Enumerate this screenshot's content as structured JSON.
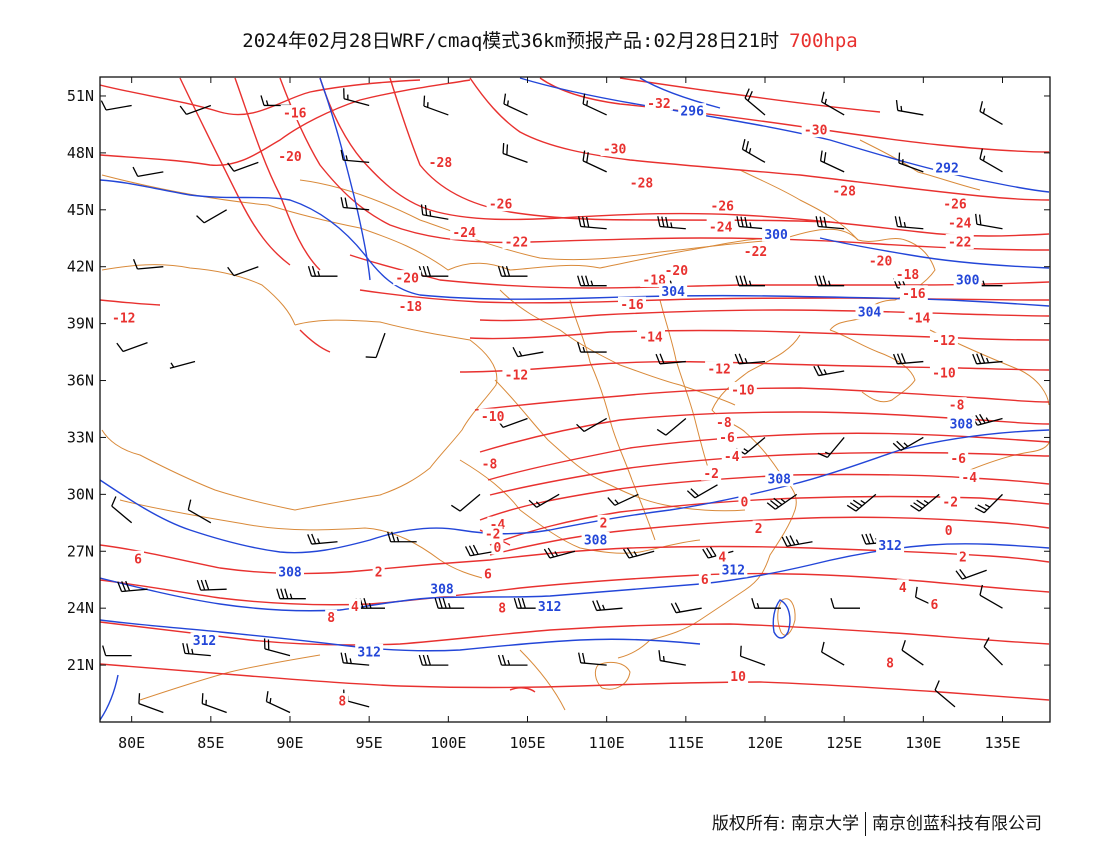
{
  "title": {
    "main": "2024年02月28日WRF/cmaq模式36km预报产品:02月28日21时",
    "level": "700hpa"
  },
  "credit": {
    "left": "版权所有: 南京大学",
    "right": "南京创蓝科技有限公司"
  },
  "map": {
    "lon_range": [
      78,
      138
    ],
    "lat_range": [
      18,
      52
    ],
    "lon_ticks": [
      "80E",
      "85E",
      "90E",
      "95E",
      "100E",
      "105E",
      "110E",
      "115E",
      "120E",
      "125E",
      "130E",
      "135E"
    ],
    "lat_ticks": [
      "51N",
      "48N",
      "45N",
      "42N",
      "39N",
      "36N",
      "33N",
      "30N",
      "27N",
      "24N",
      "21N"
    ],
    "colors": {
      "temperature": "#e8312f",
      "height": "#2346d8",
      "boundary": "#d98a3a",
      "barb": "#000000"
    },
    "temperature_labels": [
      {
        "text": "-16",
        "lon": 90.3,
        "lat": 50.1
      },
      {
        "text": "-20",
        "lon": 90.0,
        "lat": 47.8
      },
      {
        "text": "-32",
        "lon": 113.3,
        "lat": 50.6
      },
      {
        "text": "-30",
        "lon": 110.5,
        "lat": 48.2
      },
      {
        "text": "-30",
        "lon": 123.2,
        "lat": 49.2
      },
      {
        "text": "-28",
        "lon": 99.5,
        "lat": 47.5
      },
      {
        "text": "-28",
        "lon": 112.2,
        "lat": 46.4
      },
      {
        "text": "-28",
        "lon": 125.0,
        "lat": 46.0
      },
      {
        "text": "-26",
        "lon": 103.3,
        "lat": 45.3
      },
      {
        "text": "-26",
        "lon": 117.3,
        "lat": 45.2
      },
      {
        "text": "-26",
        "lon": 132.0,
        "lat": 45.3
      },
      {
        "text": "-24",
        "lon": 101.0,
        "lat": 43.8
      },
      {
        "text": "-24",
        "lon": 117.2,
        "lat": 44.1
      },
      {
        "text": "-24",
        "lon": 132.3,
        "lat": 44.3
      },
      {
        "text": "-22",
        "lon": 104.3,
        "lat": 43.3
      },
      {
        "text": "-22",
        "lon": 119.4,
        "lat": 42.8
      },
      {
        "text": "-22",
        "lon": 132.3,
        "lat": 43.3
      },
      {
        "text": "-20",
        "lon": 97.4,
        "lat": 41.4
      },
      {
        "text": "-20",
        "lon": 114.4,
        "lat": 41.8
      },
      {
        "text": "-20",
        "lon": 127.3,
        "lat": 42.3
      },
      {
        "text": "-18",
        "lon": 97.6,
        "lat": 39.9
      },
      {
        "text": "-18",
        "lon": 113.0,
        "lat": 41.3
      },
      {
        "text": "-18",
        "lon": 129.0,
        "lat": 41.6
      },
      {
        "text": "-16",
        "lon": 111.6,
        "lat": 40.0
      },
      {
        "text": "-16",
        "lon": 129.4,
        "lat": 40.6
      },
      {
        "text": "-14",
        "lon": 112.8,
        "lat": 38.3
      },
      {
        "text": "-14",
        "lon": 129.7,
        "lat": 39.3
      },
      {
        "text": "-12",
        "lon": 79.5,
        "lat": 39.3
      },
      {
        "text": "-12",
        "lon": 104.3,
        "lat": 36.3
      },
      {
        "text": "-12",
        "lon": 117.1,
        "lat": 36.6
      },
      {
        "text": "-12",
        "lon": 131.3,
        "lat": 38.1
      },
      {
        "text": "-10",
        "lon": 102.8,
        "lat": 34.1
      },
      {
        "text": "-10",
        "lon": 118.6,
        "lat": 35.5
      },
      {
        "text": "-10",
        "lon": 131.3,
        "lat": 36.4
      },
      {
        "text": "-8",
        "lon": 102.6,
        "lat": 31.6
      },
      {
        "text": "-8",
        "lon": 117.4,
        "lat": 33.8
      },
      {
        "text": "-8",
        "lon": 132.1,
        "lat": 34.7
      },
      {
        "text": "-6",
        "lon": 117.6,
        "lat": 33.0
      },
      {
        "text": "-6",
        "lon": 132.2,
        "lat": 31.9
      },
      {
        "text": "-4",
        "lon": 117.9,
        "lat": 32.0
      },
      {
        "text": "-4",
        "lon": 132.9,
        "lat": 30.9
      },
      {
        "text": "-4",
        "lon": 103.1,
        "lat": 28.4
      },
      {
        "text": "-2",
        "lon": 116.6,
        "lat": 31.1
      },
      {
        "text": "-2",
        "lon": 131.7,
        "lat": 29.6
      },
      {
        "text": "-2",
        "lon": 102.8,
        "lat": 27.9
      },
      {
        "text": "0",
        "lon": 118.7,
        "lat": 29.6
      },
      {
        "text": "0",
        "lon": 131.6,
        "lat": 28.1
      },
      {
        "text": "0",
        "lon": 103.1,
        "lat": 27.2
      },
      {
        "text": "2",
        "lon": 109.8,
        "lat": 28.5
      },
      {
        "text": "2",
        "lon": 119.6,
        "lat": 28.2
      },
      {
        "text": "2",
        "lon": 95.6,
        "lat": 25.9
      },
      {
        "text": "2",
        "lon": 132.5,
        "lat": 26.7
      },
      {
        "text": "4",
        "lon": 94.1,
        "lat": 24.1
      },
      {
        "text": "4",
        "lon": 128.7,
        "lat": 25.1
      },
      {
        "text": "4",
        "lon": 117.3,
        "lat": 26.7
      },
      {
        "text": "6",
        "lon": 80.4,
        "lat": 26.6
      },
      {
        "text": "6",
        "lon": 102.5,
        "lat": 25.8
      },
      {
        "text": "6",
        "lon": 116.2,
        "lat": 25.5
      },
      {
        "text": "6",
        "lon": 130.7,
        "lat": 24.2
      },
      {
        "text": "8",
        "lon": 103.4,
        "lat": 24.0
      },
      {
        "text": "8",
        "lon": 127.9,
        "lat": 21.1
      },
      {
        "text": "8",
        "lon": 92.6,
        "lat": 23.5
      },
      {
        "text": "8",
        "lon": 93.3,
        "lat": 19.1
      },
      {
        "text": "10",
        "lon": 118.3,
        "lat": 20.4
      }
    ],
    "height_labels": [
      {
        "text": "296",
        "lon": 115.4,
        "lat": 50.2
      },
      {
        "text": "292",
        "lon": 131.5,
        "lat": 47.2
      },
      {
        "text": "300",
        "lon": 120.7,
        "lat": 43.7
      },
      {
        "text": "300",
        "lon": 132.8,
        "lat": 41.3
      },
      {
        "text": "304",
        "lon": 114.2,
        "lat": 40.7
      },
      {
        "text": "304",
        "lon": 126.6,
        "lat": 39.6
      },
      {
        "text": "308",
        "lon": 132.4,
        "lat": 33.7
      },
      {
        "text": "308",
        "lon": 120.9,
        "lat": 30.8
      },
      {
        "text": "308",
        "lon": 109.3,
        "lat": 27.6
      },
      {
        "text": "308",
        "lon": 90.0,
        "lat": 25.9
      },
      {
        "text": "308",
        "lon": 99.6,
        "lat": 25.0
      },
      {
        "text": "312",
        "lon": 127.9,
        "lat": 27.3
      },
      {
        "text": "312",
        "lon": 118.0,
        "lat": 26.0
      },
      {
        "text": "312",
        "lon": 106.4,
        "lat": 24.1
      },
      {
        "text": "312",
        "lon": 84.6,
        "lat": 22.3
      },
      {
        "text": "312",
        "lon": 95.0,
        "lat": 21.7
      }
    ],
    "barbs": [
      {
        "lon": 80.0,
        "lat": 50.5,
        "dir": 260,
        "kt": 10
      },
      {
        "lon": 85.0,
        "lat": 50.5,
        "dir": 250,
        "kt": 12
      },
      {
        "lon": 90.0,
        "lat": 50.5,
        "dir": 270,
        "kt": 14
      },
      {
        "lon": 95.0,
        "lat": 50.5,
        "dir": 285,
        "kt": 16
      },
      {
        "lon": 100.0,
        "lat": 50.0,
        "dir": 290,
        "kt": 18
      },
      {
        "lon": 105.0,
        "lat": 50.0,
        "dir": 295,
        "kt": 18
      },
      {
        "lon": 110.0,
        "lat": 50.0,
        "dir": 295,
        "kt": 16
      },
      {
        "lon": 120.0,
        "lat": 50.0,
        "dir": 310,
        "kt": 20
      },
      {
        "lon": 125.0,
        "lat": 50.0,
        "dir": 300,
        "kt": 18
      },
      {
        "lon": 130.0,
        "lat": 50.0,
        "dir": 280,
        "kt": 14
      },
      {
        "lon": 135.0,
        "lat": 49.5,
        "dir": 300,
        "kt": 16
      },
      {
        "lon": 82.0,
        "lat": 47.0,
        "dir": 260,
        "kt": 10
      },
      {
        "lon": 88.0,
        "lat": 47.5,
        "dir": 250,
        "kt": 12
      },
      {
        "lon": 95.0,
        "lat": 47.5,
        "dir": 275,
        "kt": 16
      },
      {
        "lon": 105.0,
        "lat": 47.5,
        "dir": 290,
        "kt": 20
      },
      {
        "lon": 110.0,
        "lat": 47.0,
        "dir": 295,
        "kt": 22
      },
      {
        "lon": 120.0,
        "lat": 47.5,
        "dir": 300,
        "kt": 24
      },
      {
        "lon": 125.0,
        "lat": 47.0,
        "dir": 295,
        "kt": 22
      },
      {
        "lon": 130.0,
        "lat": 47.0,
        "dir": 290,
        "kt": 18
      },
      {
        "lon": 135.0,
        "lat": 47.0,
        "dir": 300,
        "kt": 16
      },
      {
        "lon": 86.0,
        "lat": 45.0,
        "dir": 240,
        "kt": 12
      },
      {
        "lon": 95.0,
        "lat": 45.0,
        "dir": 275,
        "kt": 20
      },
      {
        "lon": 100.0,
        "lat": 44.5,
        "dir": 280,
        "kt": 24
      },
      {
        "lon": 110.0,
        "lat": 44.0,
        "dir": 275,
        "kt": 30
      },
      {
        "lon": 115.0,
        "lat": 44.0,
        "dir": 275,
        "kt": 34
      },
      {
        "lon": 120.0,
        "lat": 44.0,
        "dir": 275,
        "kt": 36
      },
      {
        "lon": 125.0,
        "lat": 44.0,
        "dir": 275,
        "kt": 32
      },
      {
        "lon": 130.0,
        "lat": 44.0,
        "dir": 275,
        "kt": 26
      },
      {
        "lon": 135.0,
        "lat": 44.0,
        "dir": 280,
        "kt": 20
      },
      {
        "lon": 82.0,
        "lat": 42.0,
        "dir": 265,
        "kt": 10
      },
      {
        "lon": 88.0,
        "lat": 42.0,
        "dir": 250,
        "kt": 12
      },
      {
        "lon": 93.0,
        "lat": 41.5,
        "dir": 270,
        "kt": 28
      },
      {
        "lon": 100.0,
        "lat": 41.5,
        "dir": 270,
        "kt": 30
      },
      {
        "lon": 105.0,
        "lat": 41.5,
        "dir": 270,
        "kt": 32
      },
      {
        "lon": 110.0,
        "lat": 41.0,
        "dir": 270,
        "kt": 34
      },
      {
        "lon": 115.0,
        "lat": 41.0,
        "dir": 270,
        "kt": 38
      },
      {
        "lon": 120.0,
        "lat": 41.0,
        "dir": 270,
        "kt": 36
      },
      {
        "lon": 125.0,
        "lat": 41.0,
        "dir": 270,
        "kt": 34
      },
      {
        "lon": 130.0,
        "lat": 41.0,
        "dir": 265,
        "kt": 30
      },
      {
        "lon": 135.0,
        "lat": 41.0,
        "dir": 270,
        "kt": 26
      },
      {
        "lon": 81.0,
        "lat": 38.0,
        "dir": 250,
        "kt": 10
      },
      {
        "lon": 84.0,
        "lat": 37.0,
        "dir": 255,
        "kt": 8
      },
      {
        "lon": 96.0,
        "lat": 38.5,
        "dir": 200,
        "kt": 10
      },
      {
        "lon": 106.0,
        "lat": 37.5,
        "dir": 260,
        "kt": 14
      },
      {
        "lon": 110.0,
        "lat": 37.5,
        "dir": 270,
        "kt": 16
      },
      {
        "lon": 115.0,
        "lat": 37.0,
        "dir": 265,
        "kt": 20
      },
      {
        "lon": 120.0,
        "lat": 37.0,
        "dir": 265,
        "kt": 24
      },
      {
        "lon": 125.0,
        "lat": 36.5,
        "dir": 260,
        "kt": 28
      },
      {
        "lon": 130.0,
        "lat": 37.0,
        "dir": 265,
        "kt": 32
      },
      {
        "lon": 135.0,
        "lat": 37.0,
        "dir": 265,
        "kt": 34
      },
      {
        "lon": 105.0,
        "lat": 34.0,
        "dir": 250,
        "kt": 12
      },
      {
        "lon": 110.0,
        "lat": 34.0,
        "dir": 240,
        "kt": 12
      },
      {
        "lon": 115.0,
        "lat": 34.0,
        "dir": 230,
        "kt": 12
      },
      {
        "lon": 120.0,
        "lat": 33.0,
        "dir": 230,
        "kt": 16
      },
      {
        "lon": 125.0,
        "lat": 33.0,
        "dir": 220,
        "kt": 16
      },
      {
        "lon": 130.0,
        "lat": 33.0,
        "dir": 240,
        "kt": 24
      },
      {
        "lon": 135.0,
        "lat": 34.0,
        "dir": 255,
        "kt": 34
      },
      {
        "lon": 102.0,
        "lat": 30.0,
        "dir": 230,
        "kt": 12
      },
      {
        "lon": 107.0,
        "lat": 30.0,
        "dir": 240,
        "kt": 14
      },
      {
        "lon": 112.0,
        "lat": 30.0,
        "dir": 245,
        "kt": 16
      },
      {
        "lon": 117.0,
        "lat": 30.5,
        "dir": 240,
        "kt": 20
      },
      {
        "lon": 122.0,
        "lat": 30.0,
        "dir": 235,
        "kt": 34
      },
      {
        "lon": 127.0,
        "lat": 30.0,
        "dir": 230,
        "kt": 34
      },
      {
        "lon": 131.0,
        "lat": 30.0,
        "dir": 230,
        "kt": 36
      },
      {
        "lon": 135.0,
        "lat": 30.0,
        "dir": 225,
        "kt": 28
      },
      {
        "lon": 80.0,
        "lat": 28.5,
        "dir": 310,
        "kt": 10
      },
      {
        "lon": 85.0,
        "lat": 28.5,
        "dir": 300,
        "kt": 12
      },
      {
        "lon": 93.0,
        "lat": 27.5,
        "dir": 265,
        "kt": 26
      },
      {
        "lon": 98.0,
        "lat": 27.5,
        "dir": 270,
        "kt": 24
      },
      {
        "lon": 103.0,
        "lat": 27.0,
        "dir": 260,
        "kt": 30
      },
      {
        "lon": 108.0,
        "lat": 27.0,
        "dir": 255,
        "kt": 28
      },
      {
        "lon": 113.0,
        "lat": 27.0,
        "dir": 255,
        "kt": 26
      },
      {
        "lon": 118.0,
        "lat": 27.0,
        "dir": 255,
        "kt": 30
      },
      {
        "lon": 123.0,
        "lat": 27.5,
        "dir": 260,
        "kt": 36
      },
      {
        "lon": 128.0,
        "lat": 27.5,
        "dir": 265,
        "kt": 38
      },
      {
        "lon": 134.0,
        "lat": 26.0,
        "dir": 250,
        "kt": 20
      },
      {
        "lon": 81.0,
        "lat": 25.0,
        "dir": 265,
        "kt": 30
      },
      {
        "lon": 86.0,
        "lat": 25.0,
        "dir": 268,
        "kt": 32
      },
      {
        "lon": 91.0,
        "lat": 24.5,
        "dir": 270,
        "kt": 34
      },
      {
        "lon": 96.0,
        "lat": 24.0,
        "dir": 270,
        "kt": 36
      },
      {
        "lon": 101.0,
        "lat": 24.0,
        "dir": 270,
        "kt": 34
      },
      {
        "lon": 106.0,
        "lat": 24.0,
        "dir": 270,
        "kt": 32
      },
      {
        "lon": 111.0,
        "lat": 24.0,
        "dir": 265,
        "kt": 28
      },
      {
        "lon": 116.0,
        "lat": 24.0,
        "dir": 260,
        "kt": 22
      },
      {
        "lon": 121.0,
        "lat": 24.0,
        "dir": 270,
        "kt": 16
      },
      {
        "lon": 126.0,
        "lat": 24.0,
        "dir": 270,
        "kt": 12
      },
      {
        "lon": 131.0,
        "lat": 24.0,
        "dir": 295,
        "kt": 12
      },
      {
        "lon": 135.0,
        "lat": 24.0,
        "dir": 300,
        "kt": 10
      },
      {
        "lon": 80.0,
        "lat": 21.5,
        "dir": 270,
        "kt": 10
      },
      {
        "lon": 85.0,
        "lat": 21.5,
        "dir": 275,
        "kt": 24
      },
      {
        "lon": 90.0,
        "lat": 21.5,
        "dir": 285,
        "kt": 22
      },
      {
        "lon": 95.0,
        "lat": 21.0,
        "dir": 275,
        "kt": 28
      },
      {
        "lon": 100.0,
        "lat": 21.0,
        "dir": 270,
        "kt": 30
      },
      {
        "lon": 105.0,
        "lat": 21.0,
        "dir": 270,
        "kt": 26
      },
      {
        "lon": 110.0,
        "lat": 21.0,
        "dir": 275,
        "kt": 22
      },
      {
        "lon": 115.0,
        "lat": 21.0,
        "dir": 280,
        "kt": 16
      },
      {
        "lon": 120.0,
        "lat": 21.0,
        "dir": 290,
        "kt": 10
      },
      {
        "lon": 125.0,
        "lat": 21.0,
        "dir": 300,
        "kt": 10
      },
      {
        "lon": 130.0,
        "lat": 21.0,
        "dir": 305,
        "kt": 12
      },
      {
        "lon": 135.0,
        "lat": 21.0,
        "dir": 315,
        "kt": 10
      },
      {
        "lon": 82.0,
        "lat": 18.5,
        "dir": 290,
        "kt": 12
      },
      {
        "lon": 86.0,
        "lat": 18.5,
        "dir": 290,
        "kt": 14
      },
      {
        "lon": 90.0,
        "lat": 18.5,
        "dir": 295,
        "kt": 14
      },
      {
        "lon": 95.0,
        "lat": 18.8,
        "dir": 285,
        "kt": 18
      },
      {
        "lon": 132.0,
        "lat": 18.8,
        "dir": 310,
        "kt": 12
      }
    ]
  }
}
